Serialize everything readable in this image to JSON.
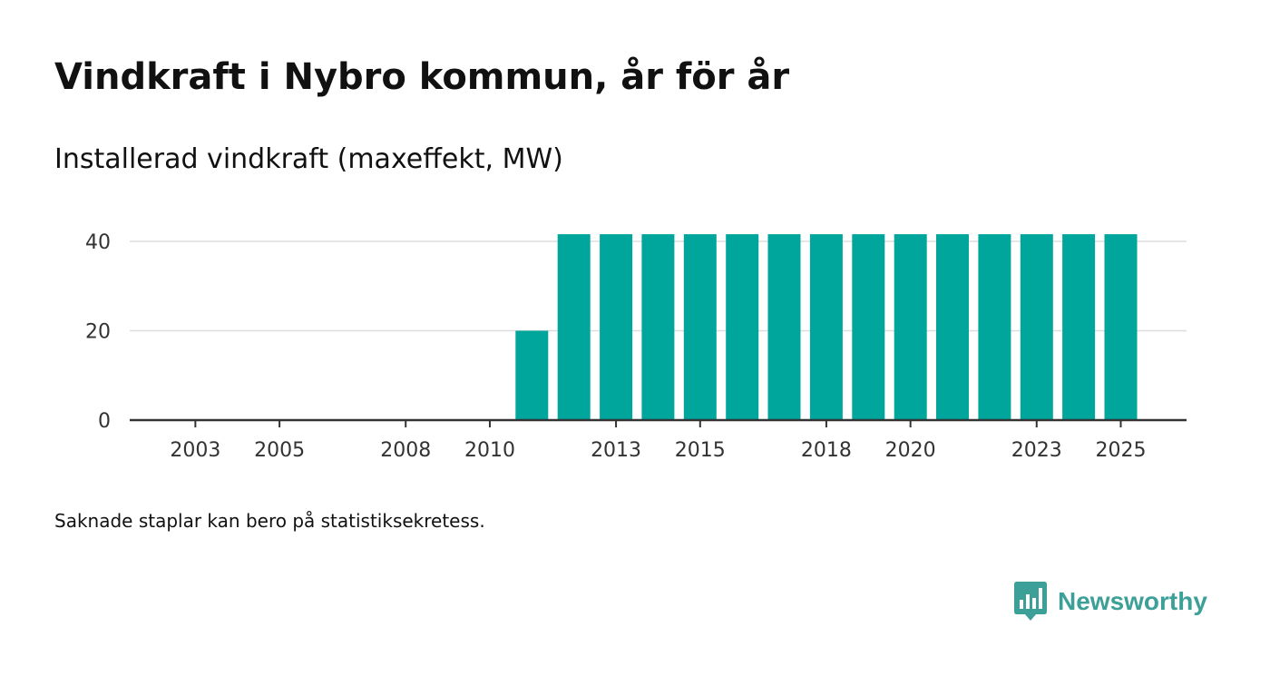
{
  "title": "Vindkraft i Nybro kommun, år för år",
  "subtitle": "Installerad vindkraft (maxeffekt, MW)",
  "note": "Saknade staplar kan bero på statistiksekretess.",
  "brand": {
    "name": "Newsworthy",
    "icon": "newsworthy-logo-icon",
    "color": "#3c9f98"
  },
  "colors": {
    "bar": "#00a69c",
    "grid": "#dddddd",
    "axis": "#333333"
  },
  "chart_data": {
    "type": "bar",
    "title": "Vindkraft i Nybro kommun, år för år",
    "ylabel": "Installerad vindkraft (maxeffekt, MW)",
    "xlabel": "",
    "categories": [
      "2002",
      "2003",
      "2004",
      "2005",
      "2006",
      "2007",
      "2008",
      "2009",
      "2010",
      "2011",
      "2012",
      "2013",
      "2014",
      "2015",
      "2016",
      "2017",
      "2018",
      "2019",
      "2020",
      "2021",
      "2022",
      "2023",
      "2024",
      "2025"
    ],
    "values": [
      0,
      0,
      0,
      0,
      0,
      0,
      0,
      0,
      0,
      20,
      41.6,
      41.6,
      41.6,
      41.6,
      41.6,
      41.6,
      41.6,
      41.6,
      41.6,
      41.6,
      41.6,
      41.6,
      41.6,
      41.6
    ],
    "xticks": [
      "2003",
      "2005",
      "2008",
      "2010",
      "2013",
      "2015",
      "2018",
      "2020",
      "2023",
      "2025"
    ],
    "yticks": [
      0,
      20,
      40
    ],
    "ylim": [
      0,
      45
    ],
    "grid": true
  }
}
